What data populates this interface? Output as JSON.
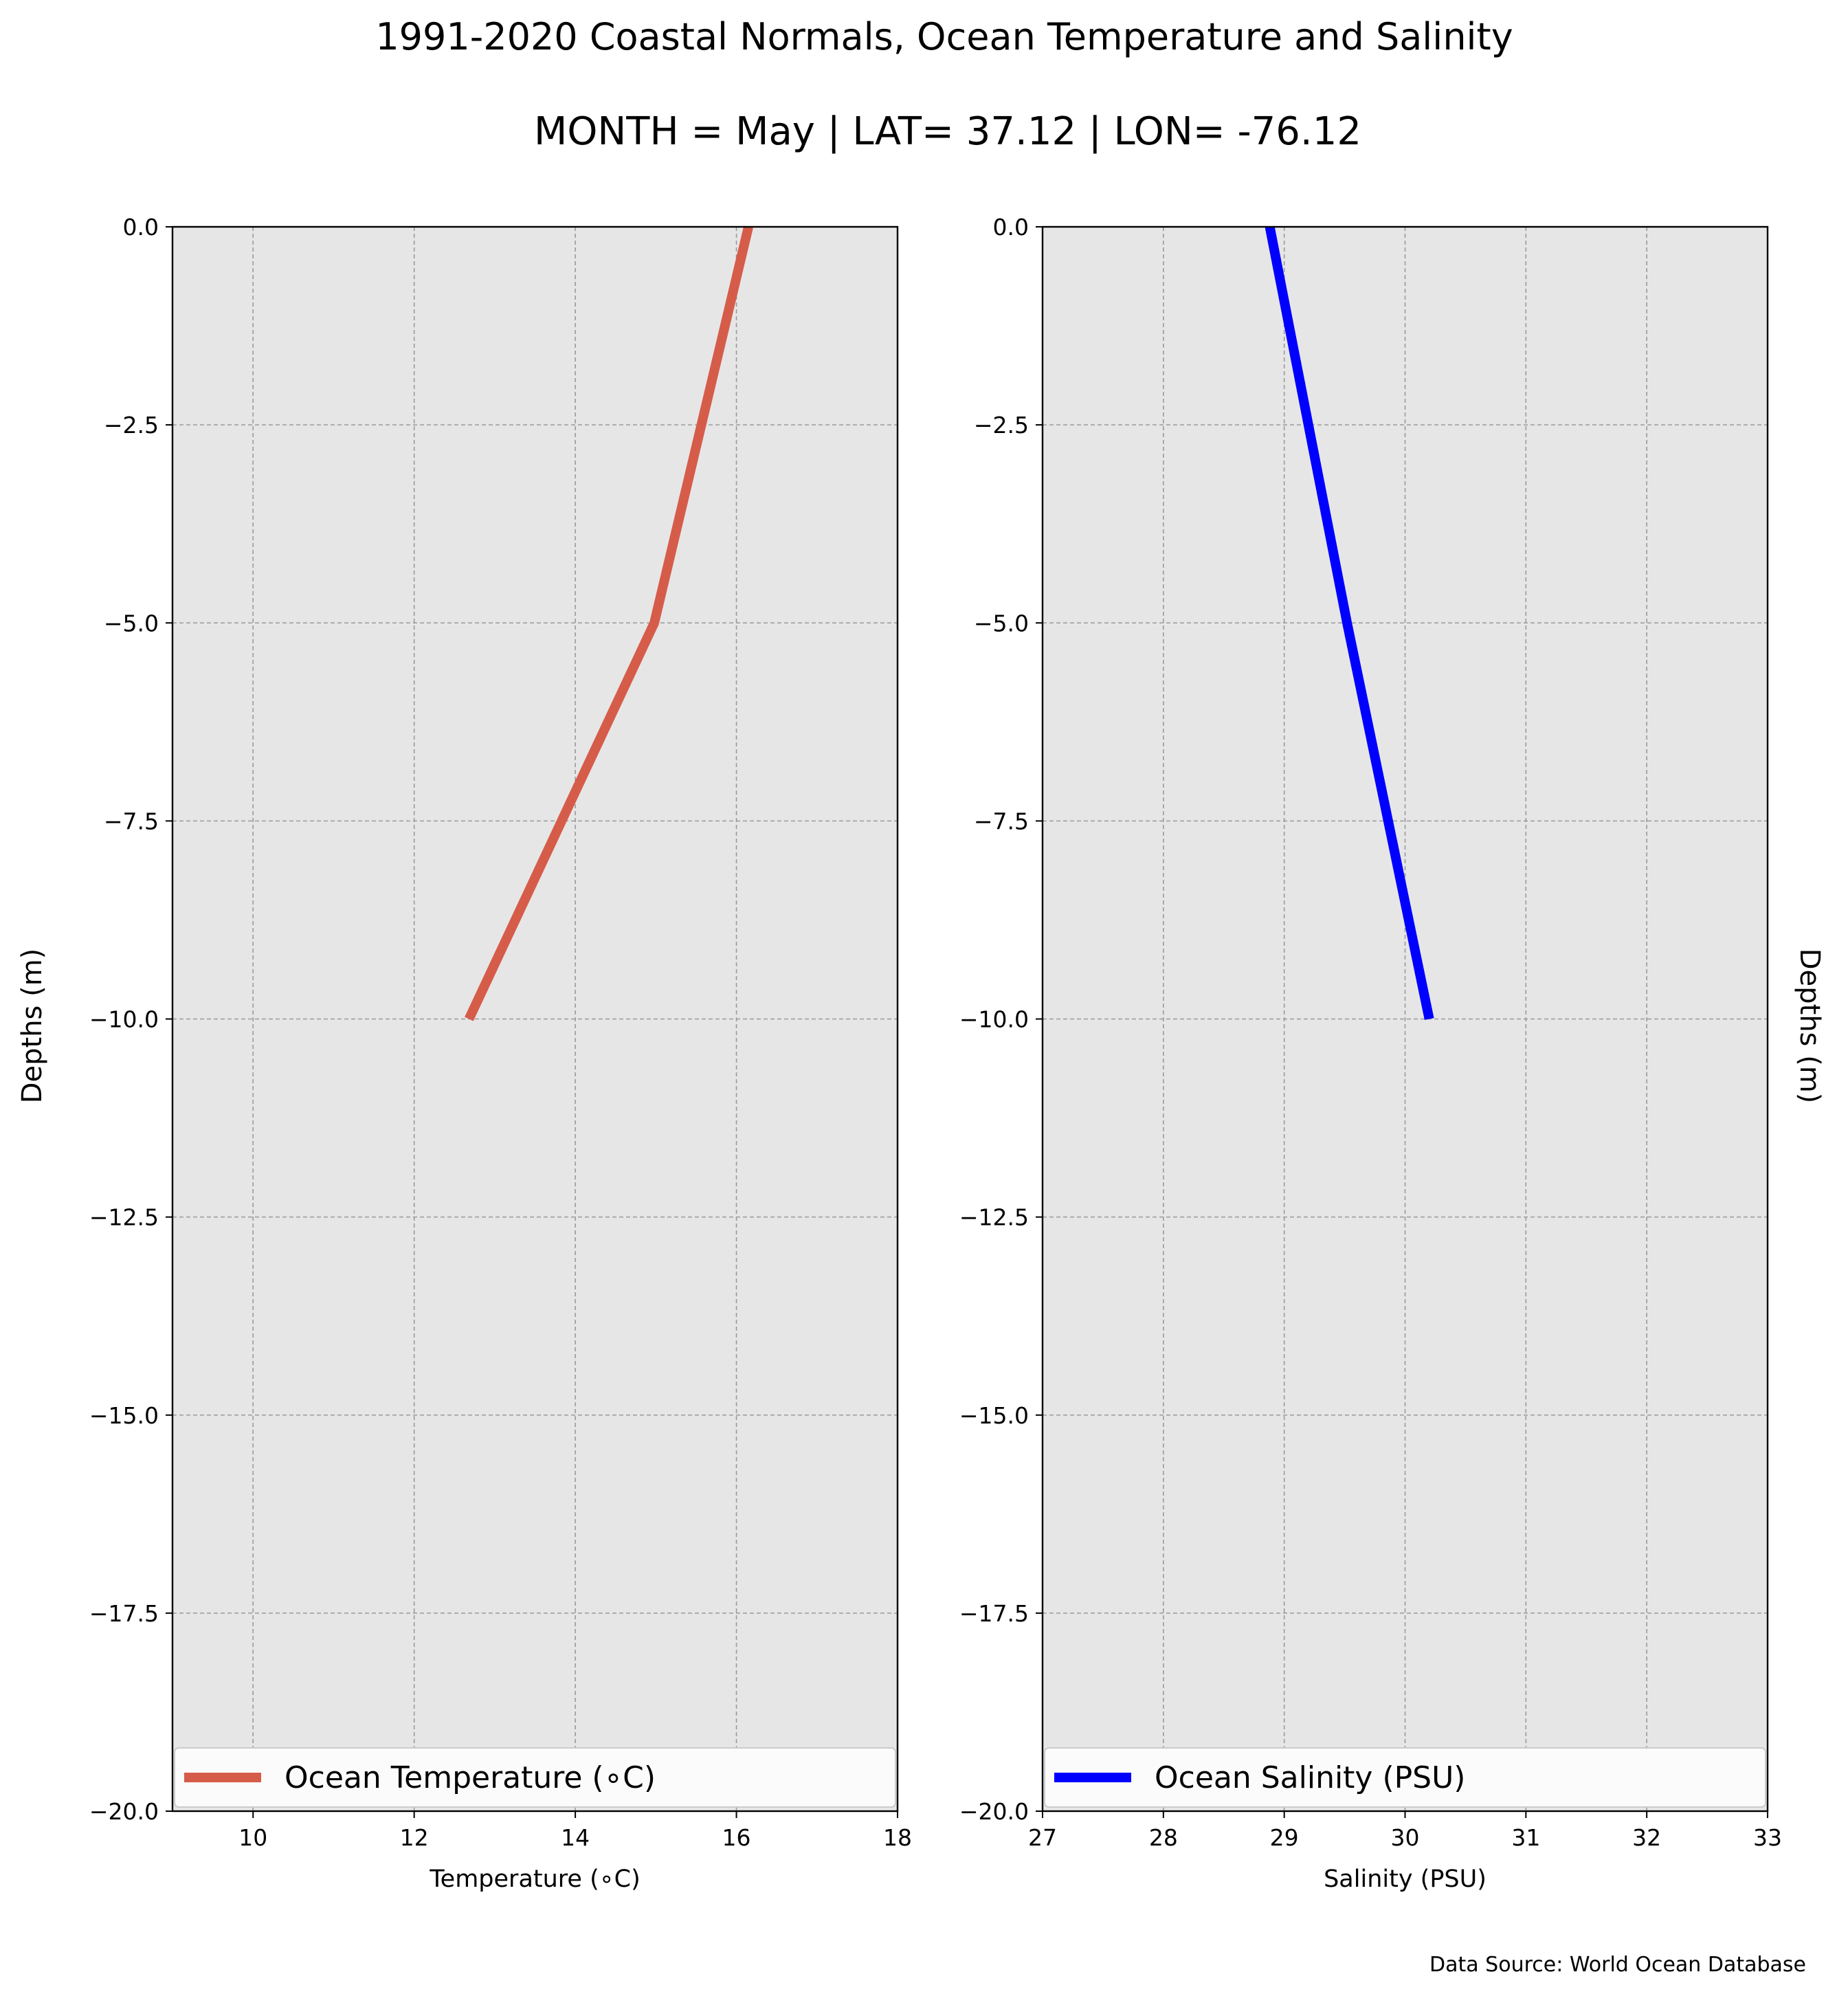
{
  "figure": {
    "title": "1991-2020 Coastal Normals, Ocean Temperature and Salinity",
    "subtitle": "MONTH = May | LAT= 37.12 | LON= -76.12",
    "source_note": "Data Source: World Ocean Database"
  },
  "chart_data": [
    {
      "type": "line",
      "ylabel": "Depths (m)",
      "xlabel": "Temperature (∘C)",
      "xlim": [
        9,
        18
      ],
      "ylim": [
        -20,
        0
      ],
      "x_ticks": [
        10,
        12,
        14,
        16,
        18
      ],
      "x_tick_labels": [
        "10",
        "12",
        "14",
        "16",
        "18"
      ],
      "y_ticks": [
        0,
        -2.5,
        -5,
        -7.5,
        -10,
        -12.5,
        -15,
        -17.5,
        -20
      ],
      "y_tick_labels": [
        "0.0",
        "−2.5",
        "−5.0",
        "−7.5",
        "−10.0",
        "−12.5",
        "−15.0",
        "−17.5",
        "−20.0"
      ],
      "grid": true,
      "legend_position": "lower-center",
      "series": [
        {
          "name": "Ocean Temperature (∘C)",
          "color": "#d65c4a",
          "points": [
            {
              "x": 16.15,
              "y": 0
            },
            {
              "x": 14.98,
              "y": -5
            },
            {
              "x": 12.68,
              "y": -10
            }
          ]
        }
      ]
    },
    {
      "type": "line",
      "ylabel": "Depths (m)",
      "xlabel": "Salinity (PSU)",
      "xlim": [
        27,
        33
      ],
      "ylim": [
        -20,
        0
      ],
      "x_ticks": [
        27,
        28,
        29,
        30,
        31,
        32,
        33
      ],
      "x_tick_labels": [
        "27",
        "28",
        "29",
        "30",
        "31",
        "32",
        "33"
      ],
      "y_ticks": [
        0,
        -2.5,
        -5,
        -7.5,
        -10,
        -12.5,
        -15,
        -17.5,
        -20
      ],
      "y_tick_labels": [
        "0.0",
        "−2.5",
        "−5.0",
        "−7.5",
        "−10.0",
        "−12.5",
        "−15.0",
        "−17.5",
        "−20.0"
      ],
      "grid": true,
      "legend_position": "lower-center",
      "series": [
        {
          "name": "Ocean Salinity (PSU)",
          "color": "#0000ff",
          "points": [
            {
              "x": 28.88,
              "y": 0
            },
            {
              "x": 29.52,
              "y": -5
            },
            {
              "x": 30.2,
              "y": -10
            }
          ]
        }
      ]
    }
  ]
}
